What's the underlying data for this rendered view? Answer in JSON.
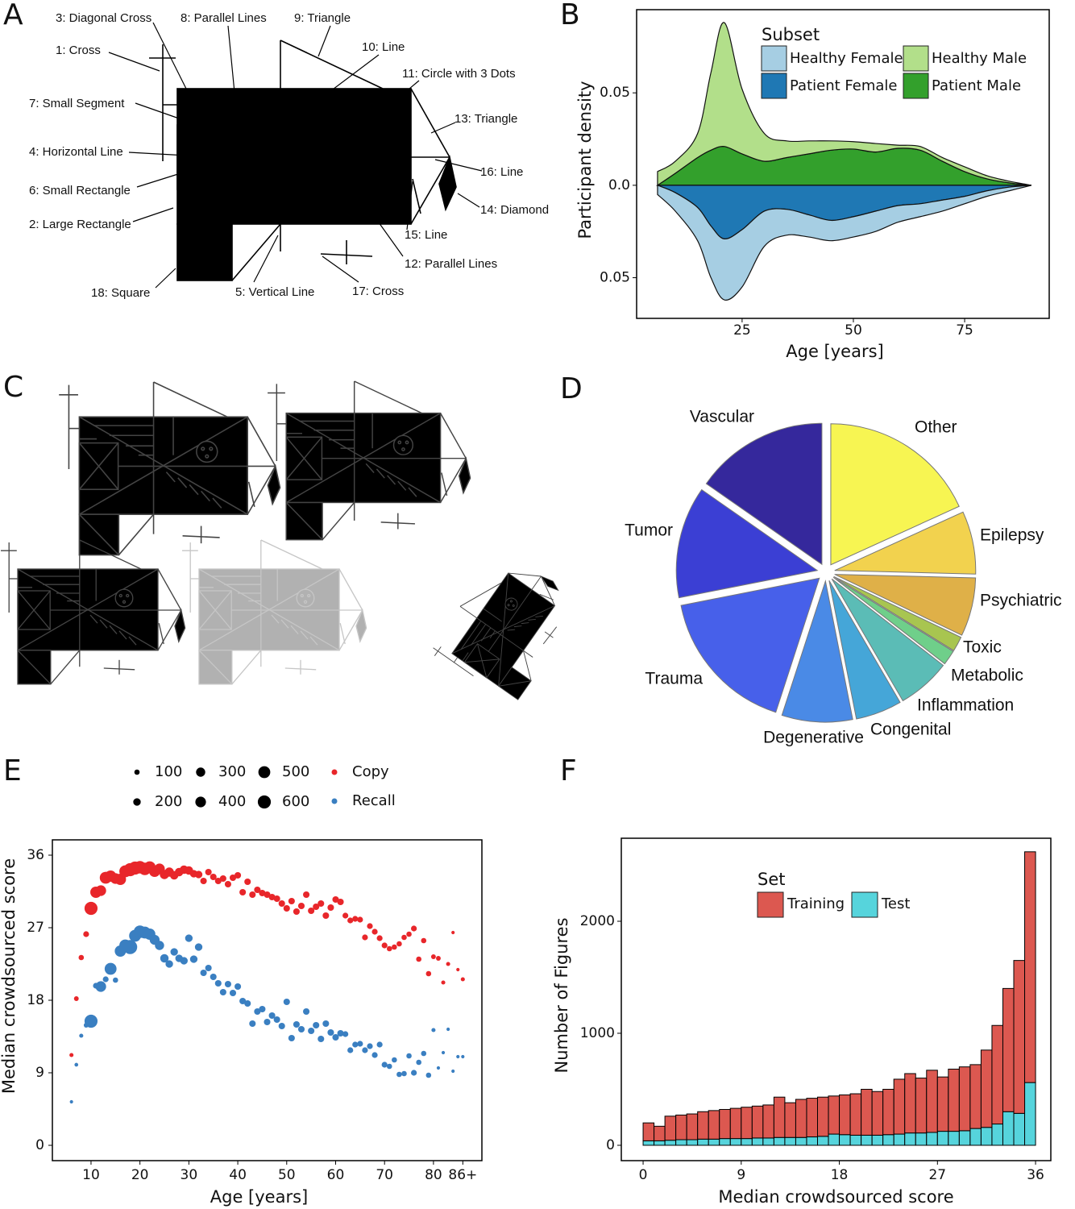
{
  "diagram": {
    "panel": "A",
    "labels": [
      "1: Cross",
      "2: Large Rectangle",
      "3: Diagonal Cross",
      "4: Horizontal Line",
      "5: Vertical Line",
      "6: Small Rectangle",
      "7: Small Segment",
      "8: Parallel Lines",
      "9: Triangle",
      "10: Line",
      "11: Circle with 3 Dots",
      "12: Parallel Lines",
      "13: Triangle",
      "14: Diamond",
      "15: Line",
      "16: Line",
      "17: Cross",
      "18: Square"
    ]
  },
  "drawings": {
    "panel": "C"
  },
  "chart_data": [
    {
      "type": "area",
      "panel": "B",
      "xlabel": "Age [years]",
      "ylabel": "Participant density",
      "legend_title": "Subset",
      "x": [
        6,
        10,
        15,
        18,
        21,
        25,
        30,
        35,
        40,
        45,
        50,
        55,
        60,
        65,
        70,
        75,
        80,
        85,
        90
      ],
      "series": [
        {
          "name": "Healthy Female",
          "color": "#a6cee3",
          "values": [
            -0.005,
            -0.01,
            -0.018,
            -0.028,
            -0.033,
            -0.031,
            -0.019,
            -0.014,
            -0.012,
            -0.011,
            -0.011,
            -0.011,
            -0.009,
            -0.007,
            -0.006,
            -0.004,
            -0.003,
            -0.002,
            0
          ]
        },
        {
          "name": "Healthy Male",
          "color": "#b2df8a",
          "values": [
            0.0074,
            0.0065,
            0.013,
            0.042,
            0.067,
            0.035,
            0.015,
            0.009,
            0.007,
            0.005,
            0.004,
            0.0046,
            0.0017,
            0.002,
            0.002,
            0.0026,
            0.0017,
            0.0009,
            0
          ]
        },
        {
          "name": "Patient Female",
          "color": "#1f78b4",
          "values": [
            0,
            -0.004,
            -0.012,
            -0.022,
            -0.029,
            -0.024,
            -0.014,
            -0.013,
            -0.016,
            -0.019,
            -0.017,
            -0.014,
            -0.011,
            -0.01,
            -0.008,
            -0.006,
            -0.003,
            -0.001,
            0
          ]
        },
        {
          "name": "Patient Male",
          "color": "#33a02c",
          "values": [
            0,
            0.0065,
            0.015,
            0.019,
            0.021,
            0.017,
            0.013,
            0.015,
            0.017,
            0.019,
            0.0196,
            0.018,
            0.02,
            0.019,
            0.013,
            0.0074,
            0.0035,
            0.0013,
            0
          ]
        }
      ],
      "xlim": [
        1.3,
        94
      ],
      "ylim": [
        -0.072,
        0.095
      ],
      "xticks": [
        25,
        50,
        75
      ],
      "yticks": [
        {
          "value": -0.05,
          "label": "0.05"
        },
        {
          "value": 0,
          "label": "0.0"
        },
        0.05
      ]
    },
    {
      "type": "pie",
      "panel": "D",
      "categories": [
        "Other",
        "Epilepsy",
        "Psychiatric",
        "Toxic",
        "Metabolic",
        "Inflammation",
        "Congenital",
        "Degenerative",
        "Trauma",
        "Tumor",
        "Vascular"
      ],
      "values": [
        18.2,
        7.2,
        6.7,
        1.7,
        1.7,
        6.1,
        5.3,
        8.1,
        16.9,
        12.8,
        15.3
      ],
      "colors": [
        "#f7f552",
        "#f2d24e",
        "#dfb048",
        "#a8c550",
        "#6fcf8a",
        "#5bbcb6",
        "#45a6d8",
        "#4a8ae6",
        "#4760ea",
        "#3b3fd4",
        "#35289c"
      ]
    },
    {
      "type": "scatter",
      "panel": "E",
      "xlabel": "Age [years]",
      "ylabel": "Median crowdsourced score",
      "size_legend": [
        100,
        200,
        300,
        400,
        500,
        600
      ],
      "x": [
        6,
        7,
        8,
        9,
        10,
        11,
        12,
        13,
        14,
        15,
        16,
        17,
        18,
        19,
        20,
        21,
        22,
        23,
        24,
        25,
        26,
        27,
        28,
        29,
        30,
        31,
        32,
        33,
        34,
        35,
        36,
        37,
        38,
        39,
        40,
        41,
        42,
        43,
        44,
        45,
        46,
        47,
        48,
        49,
        50,
        51,
        52,
        53,
        54,
        55,
        56,
        57,
        58,
        59,
        60,
        61,
        62,
        63,
        64,
        65,
        66,
        67,
        68,
        69,
        70,
        71,
        72,
        73,
        74,
        75,
        76,
        77,
        78,
        79,
        80,
        81,
        82,
        83,
        84,
        85,
        86
      ],
      "series": [
        {
          "name": "Copy",
          "color": "#e8262a",
          "values": [
            11.2,
            18.2,
            23.3,
            26.2,
            29.4,
            31.4,
            31.6,
            33.2,
            33.4,
            33.1,
            33.0,
            34.0,
            34.2,
            34.4,
            34.5,
            34.3,
            34.5,
            34.0,
            34.3,
            33.6,
            33.9,
            33.5,
            33.9,
            34.2,
            34.1,
            33.7,
            33.6,
            32.8,
            33.9,
            33.3,
            32.8,
            33.1,
            32.4,
            33.2,
            33.5,
            31.4,
            32.7,
            31.1,
            31.7,
            31.3,
            31.1,
            30.8,
            30.6,
            30.0,
            29.4,
            30.3,
            29.0,
            29.7,
            31.1,
            29.1,
            29.6,
            30.0,
            28.5,
            29.5,
            30.5,
            30.2,
            28.5,
            27.9,
            28.1,
            28.0,
            25.8,
            27.2,
            26.5,
            25.7,
            24.8,
            24.4,
            24.6,
            25.0,
            25.8,
            26.2,
            26.9,
            23.1,
            25.4,
            21.3,
            23.4,
            23.2,
            20.2,
            22.5,
            26.4,
            21.8,
            20.6
          ],
          "sizes": [
            60,
            80,
            100,
            120,
            600,
            450,
            400,
            500,
            450,
            400,
            450,
            500,
            600,
            600,
            550,
            550,
            500,
            450,
            400,
            300,
            300,
            250,
            250,
            250,
            250,
            200,
            200,
            150,
            150,
            150,
            150,
            150,
            150,
            150,
            150,
            150,
            150,
            150,
            150,
            150,
            150,
            150,
            150,
            150,
            150,
            150,
            150,
            150,
            150,
            150,
            150,
            150,
            150,
            150,
            150,
            150,
            120,
            120,
            120,
            120,
            120,
            120,
            120,
            120,
            120,
            100,
            100,
            100,
            100,
            100,
            120,
            100,
            100,
            100,
            80,
            80,
            60,
            60,
            40,
            40,
            60
          ]
        },
        {
          "name": "Recall",
          "color": "#3a7fc1",
          "values": [
            5.4,
            10.0,
            13.6,
            14.9,
            15.4,
            19.8,
            19.7,
            20.6,
            21.9,
            20.5,
            24.1,
            24.8,
            24.6,
            26.0,
            26.5,
            26.4,
            26.2,
            25.5,
            24.8,
            23.2,
            22.5,
            24.0,
            23.2,
            22.9,
            25.7,
            23.1,
            24.6,
            21.4,
            22.0,
            20.9,
            20.1,
            19.0,
            20.0,
            18.9,
            19.7,
            17.9,
            17.6,
            15.1,
            16.6,
            16.9,
            15.3,
            16.1,
            15.6,
            14.8,
            17.8,
            13.3,
            15.0,
            14.4,
            16.6,
            14.2,
            14.9,
            13.2,
            15.1,
            14.0,
            13.4,
            13.9,
            13.8,
            11.8,
            12.5,
            12.6,
            11.8,
            12.3,
            11.2,
            12.5,
            10.0,
            9.8,
            10.6,
            8.8,
            8.9,
            11.1,
            9.0,
            10.3,
            11.4,
            8.7,
            14.3,
            9.6,
            11.5,
            14.4,
            9.2,
            11.0,
            11.0
          ],
          "sizes": [
            40,
            50,
            60,
            80,
            600,
            120,
            400,
            120,
            500,
            100,
            450,
            500,
            700,
            500,
            550,
            500,
            450,
            350,
            300,
            250,
            200,
            200,
            200,
            200,
            200,
            200,
            200,
            150,
            150,
            150,
            150,
            150,
            150,
            150,
            150,
            150,
            150,
            150,
            150,
            150,
            150,
            150,
            150,
            150,
            150,
            150,
            150,
            150,
            150,
            150,
            150,
            150,
            150,
            150,
            150,
            150,
            120,
            120,
            120,
            120,
            120,
            120,
            120,
            120,
            120,
            100,
            100,
            100,
            100,
            100,
            120,
            100,
            100,
            100,
            60,
            40,
            40,
            40,
            40,
            40,
            40
          ]
        }
      ],
      "xlim": [
        2.1,
        89.9
      ],
      "ylim": [
        -1.9,
        37.9
      ],
      "xticks": [
        10,
        20,
        30,
        40,
        50,
        60,
        70,
        80,
        {
          "value": 86,
          "label": "86+"
        }
      ],
      "yticks": [
        0,
        9,
        18,
        27,
        36
      ]
    },
    {
      "type": "histogram",
      "panel": "F",
      "xlabel": "Median crowdsourced score",
      "ylabel": "Number of Figures",
      "legend_title": "Set",
      "bins": [
        0,
        1,
        2,
        3,
        4,
        5,
        6,
        7,
        8,
        9,
        10,
        11,
        12,
        13,
        14,
        15,
        16,
        17,
        18,
        19,
        20,
        21,
        22,
        23,
        24,
        25,
        26,
        27,
        28,
        29,
        30,
        31,
        32,
        33,
        34,
        35,
        36
      ],
      "series": [
        {
          "name": "Training",
          "color": "#dc5850",
          "values": [
            160,
            130,
            215,
            220,
            230,
            245,
            255,
            260,
            270,
            280,
            285,
            295,
            360,
            310,
            340,
            345,
            350,
            340,
            355,
            370,
            410,
            390,
            405,
            490,
            530,
            490,
            555,
            485,
            555,
            570,
            570,
            690,
            880,
            1100,
            1365,
            2060
          ]
        },
        {
          "name": "Test",
          "color": "#56d4dc",
          "values": [
            40,
            40,
            45,
            50,
            50,
            55,
            55,
            60,
            60,
            60,
            65,
            65,
            70,
            70,
            70,
            75,
            80,
            100,
            95,
            90,
            90,
            90,
            95,
            100,
            110,
            110,
            115,
            125,
            125,
            130,
            150,
            160,
            190,
            300,
            285,
            560
          ]
        }
      ],
      "xlim": [
        -2,
        37.4
      ],
      "ylim": [
        -137,
        2741
      ],
      "xticks": [
        0,
        9,
        18,
        27,
        36
      ],
      "yticks": [
        0,
        1000,
        2000
      ]
    }
  ]
}
